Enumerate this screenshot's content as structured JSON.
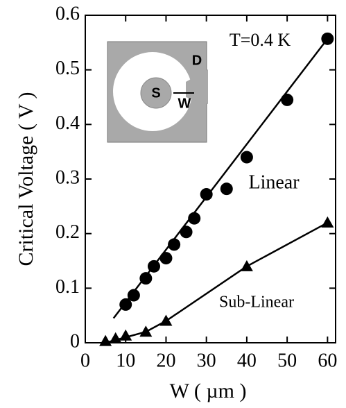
{
  "chart_data": {
    "type": "scatter",
    "xlabel": "W ( µm )",
    "ylabel": "Critical Voltage ( V )",
    "annotation": "T=0.4 K",
    "xlim": [
      0,
      62
    ],
    "xticks": [
      0,
      10,
      20,
      30,
      40,
      50,
      60
    ],
    "ylim": [
      0,
      0.6
    ],
    "yticks": [
      0,
      0.1,
      0.2,
      0.3,
      0.4,
      0.5,
      0.6
    ],
    "series": [
      {
        "name": "Linear",
        "marker": "circle",
        "color": "#000000",
        "x": [
          10,
          12,
          15,
          17,
          20,
          22,
          25,
          27,
          30,
          35,
          40,
          50,
          60
        ],
        "values": [
          0.07,
          0.087,
          0.118,
          0.14,
          0.155,
          0.18,
          0.203,
          0.228,
          0.272,
          0.282,
          0.34,
          0.445,
          0.557
        ],
        "fit_x": [
          7,
          60
        ],
        "fit_values": [
          0.045,
          0.557
        ]
      },
      {
        "name": "Sub-Linear",
        "marker": "triangle",
        "color": "#000000",
        "x": [
          5,
          7.5,
          10,
          15,
          20,
          40,
          60
        ],
        "values": [
          0.003,
          0.008,
          0.013,
          0.02,
          0.04,
          0.14,
          0.22
        ],
        "fit_x": [
          5,
          15,
          20,
          40,
          60
        ],
        "fit_values": [
          0,
          0.02,
          0.04,
          0.14,
          0.22
        ]
      }
    ]
  },
  "inset": {
    "labels": [
      "S",
      "W",
      "D"
    ]
  }
}
